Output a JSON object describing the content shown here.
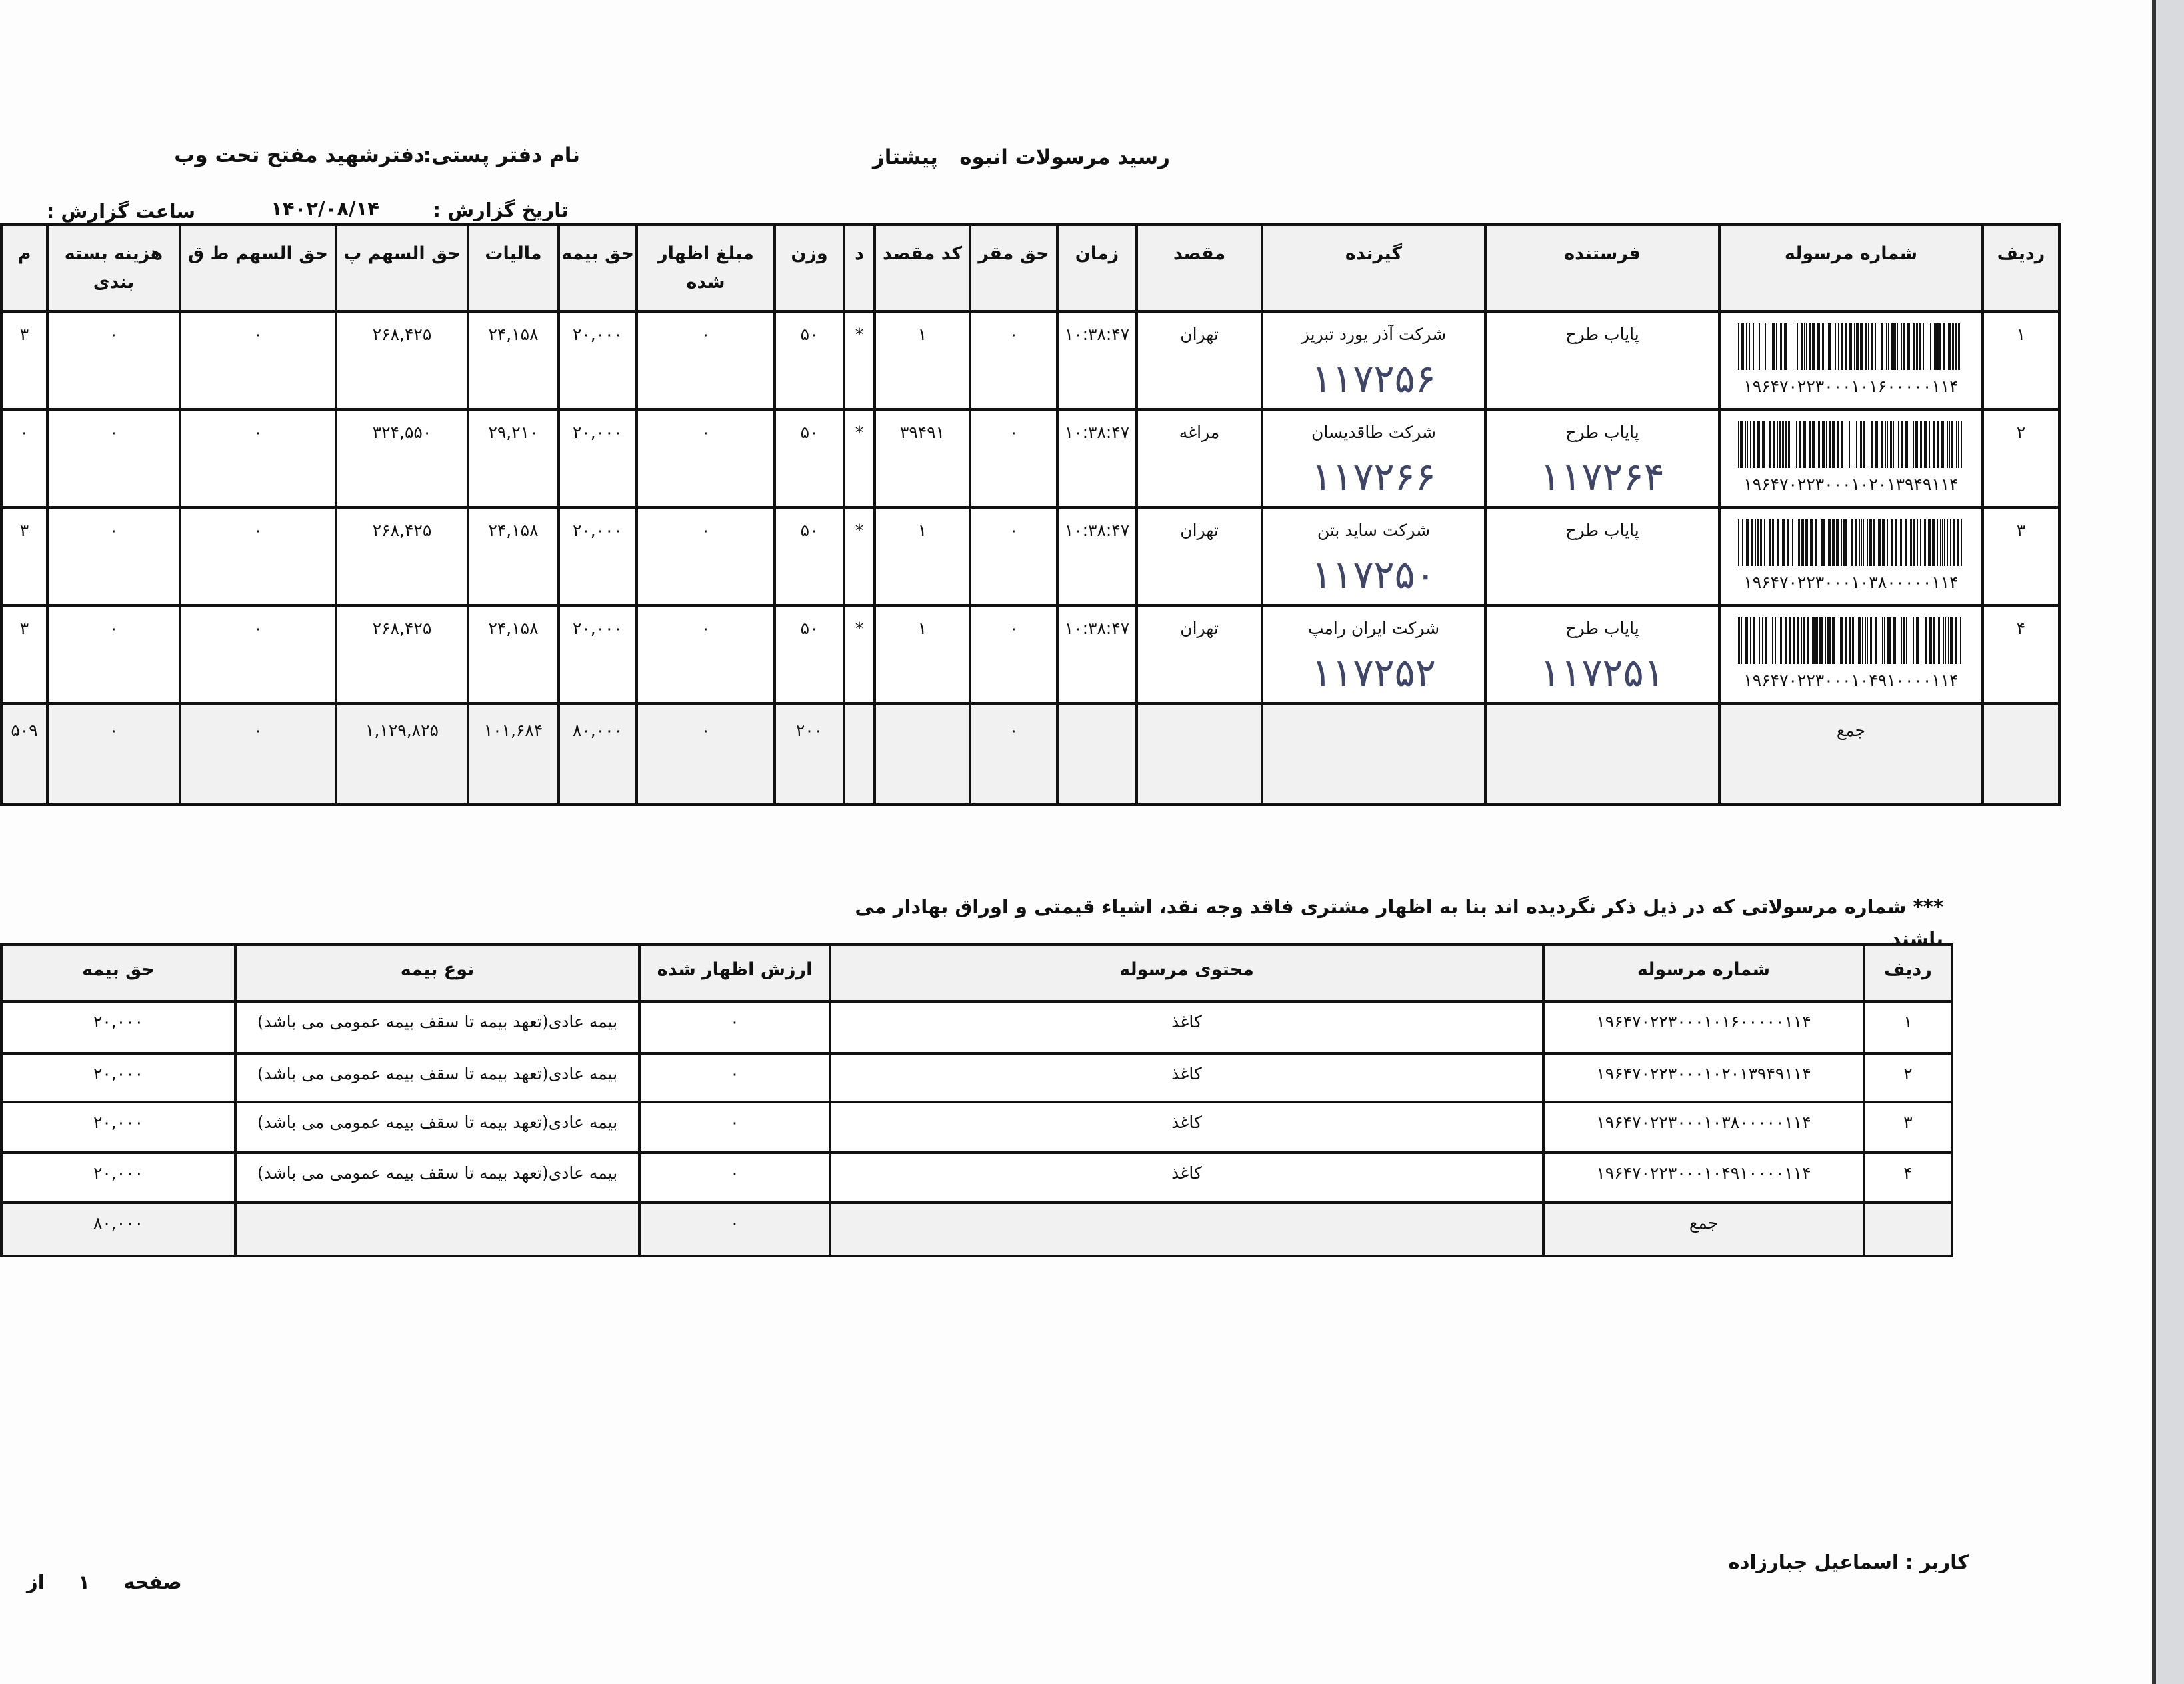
{
  "header": {
    "title": "رسید مرسولات انبوه",
    "service": "پیشتاز",
    "office_label": "نام دفتر پستی:",
    "office_name": "دفترشهید مفتح تحت وب",
    "date_label": "تاریخ گزارش :",
    "date_value": "۱۴۰۲/۰۸/۱۴",
    "time_label": "ساعت گزارش :"
  },
  "main_table": {
    "columns": [
      "ردیف",
      "شماره مرسوله",
      "فرستنده",
      "گیرنده",
      "مقصد",
      "زمان",
      "حق مقر",
      "کد مقصد",
      "د",
      "وزن",
      "مبلغ اظهار شده",
      "حق بیمه",
      "مالیات",
      "حق السهم پ",
      "حق السهم ط ق",
      "هزینه بسته بندی",
      "م"
    ],
    "rows": [
      {
        "radif": "۱",
        "tracking": "۱۹۶۴۷۰۲۲۳۰۰۰۱۰۱۶۰۰۰۰۰۱۱۴",
        "sender": "پایاب طرح",
        "sender_hand": "",
        "receiver": "شرکت آذر یورد تبریز",
        "receiver_hand": "۱۱۷۲۵۶",
        "dest": "تهران",
        "time": "۱۰:۳۸:۴۷",
        "haq_maqar": "۰",
        "dest_code": "۱",
        "d": "*",
        "weight": "۵۰",
        "declared": "۰",
        "insurance": "۲۰,۰۰۰",
        "tax": "۲۴,۱۵۸",
        "share_p": "۲۶۸,۴۲۵",
        "share_tq": "۰",
        "packaging": "۰",
        "cut": "۳"
      },
      {
        "radif": "۲",
        "tracking": "۱۹۶۴۷۰۲۲۳۰۰۰۱۰۲۰۱۳۹۴۹۱۱۴",
        "sender": "پایاب طرح",
        "sender_hand": "۱۱۷۲۶۴",
        "receiver": "شرکت طاقدیسان",
        "receiver_hand": "۱۱۷۲۶۶",
        "dest": "مراغه",
        "time": "۱۰:۳۸:۴۷",
        "haq_maqar": "۰",
        "dest_code": "۳۹۴۹۱",
        "d": "*",
        "weight": "۵۰",
        "declared": "۰",
        "insurance": "۲۰,۰۰۰",
        "tax": "۲۹,۲۱۰",
        "share_p": "۳۲۴,۵۵۰",
        "share_tq": "۰",
        "packaging": "۰",
        "cut": "۰"
      },
      {
        "radif": "۳",
        "tracking": "۱۹۶۴۷۰۲۲۳۰۰۰۱۰۳۸۰۰۰۰۰۱۱۴",
        "sender": "پایاب طرح",
        "sender_hand": "",
        "receiver": "شرکت ساید بتن",
        "receiver_hand": "۱۱۷۲۵۰",
        "dest": "تهران",
        "time": "۱۰:۳۸:۴۷",
        "haq_maqar": "۰",
        "dest_code": "۱",
        "d": "*",
        "weight": "۵۰",
        "declared": "۰",
        "insurance": "۲۰,۰۰۰",
        "tax": "۲۴,۱۵۸",
        "share_p": "۲۶۸,۴۲۵",
        "share_tq": "۰",
        "packaging": "۰",
        "cut": "۳"
      },
      {
        "radif": "۴",
        "tracking": "۱۹۶۴۷۰۲۲۳۰۰۰۱۰۴۹۱۰۰۰۰۱۱۴",
        "sender": "پایاب طرح",
        "sender_hand": "۱۱۷۲۵۱",
        "receiver": "شرکت ایران رامپ",
        "receiver_hand": "۱۱۷۲۵۲",
        "dest": "تهران",
        "time": "۱۰:۳۸:۴۷",
        "haq_maqar": "۰",
        "dest_code": "۱",
        "d": "*",
        "weight": "۵۰",
        "declared": "۰",
        "insurance": "۲۰,۰۰۰",
        "tax": "۲۴,۱۵۸",
        "share_p": "۲۶۸,۴۲۵",
        "share_tq": "۰",
        "packaging": "۰",
        "cut": "۳"
      }
    ],
    "total": {
      "label": "جمع",
      "haq_maqar": "۰",
      "weight": "۲۰۰",
      "declared": "۰",
      "insurance": "۸۰,۰۰۰",
      "tax": "۱۰۱,۶۸۴",
      "share_p": "۱,۱۲۹,۸۲۵",
      "share_tq": "۰",
      "packaging": "۰",
      "cut": "۵۰۹"
    }
  },
  "note": {
    "line1": "*** شماره مرسولاتی که در ذیل ذکر نگردیده اند بنا به اظهار مشتری فاقد وجه نقد، اشیاء قیمتی و اوراق بهادار می",
    "line2": "باشند"
  },
  "insurance_table": {
    "columns": [
      "ردیف",
      "شماره مرسوله",
      "محتوی مرسوله",
      "ارزش اظهار شده",
      "نوع بیمه",
      "حق بیمه"
    ],
    "rows": [
      {
        "radif": "۱",
        "tracking": "۱۹۶۴۷۰۲۲۳۰۰۰۱۰۱۶۰۰۰۰۰۱۱۴",
        "content": "کاغذ",
        "declared": "۰",
        "type": "بیمه عادی(تعهد بیمه تا سقف بیمه عمومی می باشد)",
        "fee": "۲۰,۰۰۰"
      },
      {
        "radif": "۲",
        "tracking": "۱۹۶۴۷۰۲۲۳۰۰۰۱۰۲۰۱۳۹۴۹۱۱۴",
        "content": "کاغذ",
        "declared": "۰",
        "type": "بیمه عادی(تعهد بیمه تا سقف بیمه عمومی می باشد)",
        "fee": "۲۰,۰۰۰"
      },
      {
        "radif": "۳",
        "tracking": "۱۹۶۴۷۰۲۲۳۰۰۰۱۰۳۸۰۰۰۰۰۱۱۴",
        "content": "کاغذ",
        "declared": "۰",
        "type": "بیمه عادی(تعهد بیمه تا سقف بیمه عمومی می باشد)",
        "fee": "۲۰,۰۰۰"
      },
      {
        "radif": "۴",
        "tracking": "۱۹۶۴۷۰۲۲۳۰۰۰۱۰۴۹۱۰۰۰۰۱۱۴",
        "content": "کاغذ",
        "declared": "۰",
        "type": "بیمه عادی(تعهد بیمه تا سقف بیمه عمومی می باشد)",
        "fee": "۲۰,۰۰۰"
      }
    ],
    "total": {
      "label": "جمع",
      "declared": "۰",
      "fee": "۸۰,۰۰۰"
    }
  },
  "footer": {
    "user": "کاربر : اسماعیل جبارزاده",
    "page_label": "صفحه",
    "page_number": "۱",
    "of_label": "از"
  },
  "colors": {
    "ink": "#111111",
    "handwriting": "#3f4566",
    "shade": "#f1f1f1"
  }
}
